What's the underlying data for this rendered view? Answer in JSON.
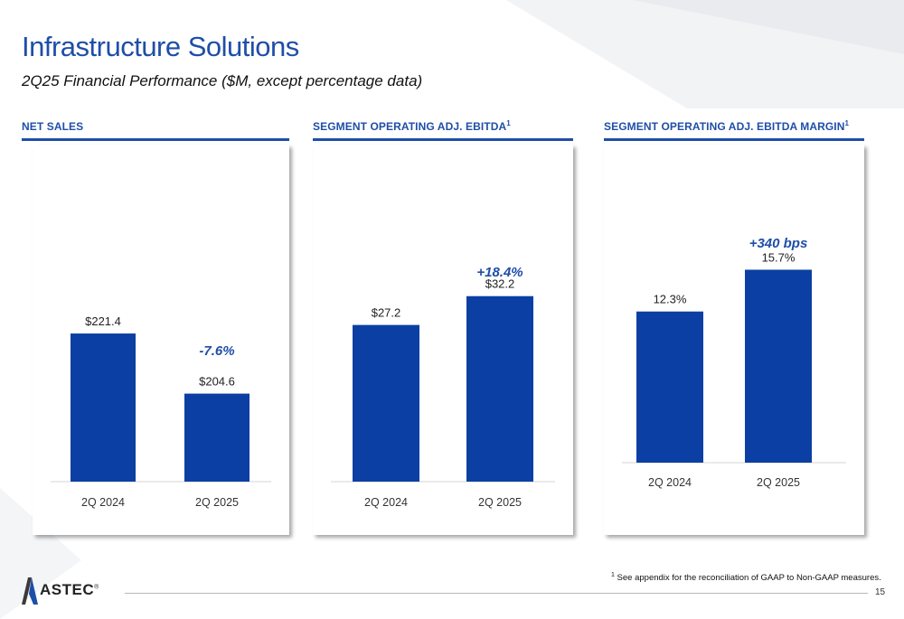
{
  "page": {
    "title": "Infrastructure Solutions",
    "subtitle": "2Q25 Financial Performance ($M, except percentage data)",
    "footnote_marker": "1",
    "footnote": "See appendix for the reconciliation of GAAP to Non-GAAP measures.",
    "page_number": "15",
    "logo_text": "ASTEC",
    "logo_mark": "®",
    "colors": {
      "accent": "#1f4ea8",
      "bar": "#0c3fa3"
    }
  },
  "panels": [
    {
      "header": "NET SALES",
      "header_sup": ""
    },
    {
      "header": "SEGMENT OPERATING ADJ. EBITDA",
      "header_sup": "1"
    },
    {
      "header": "SEGMENT OPERATING ADJ. EBITDA MARGIN",
      "header_sup": "1"
    }
  ],
  "chart_data": [
    {
      "type": "bar",
      "title": "NET SALES",
      "categories": [
        "2Q 2024",
        "2Q 2025"
      ],
      "values": [
        221.4,
        204.6
      ],
      "value_labels": [
        "$221.4",
        "$204.6"
      ],
      "change_label": "-7.6%",
      "ylim": [
        180,
        230
      ]
    },
    {
      "type": "bar",
      "title": "SEGMENT OPERATING ADJ. EBITDA",
      "categories": [
        "2Q 2024",
        "2Q 2025"
      ],
      "values": [
        27.2,
        32.2
      ],
      "value_labels": [
        "$27.2",
        "$32.2"
      ],
      "change_label": "+18.4%",
      "ylim": [
        0,
        40
      ]
    },
    {
      "type": "bar",
      "title": "SEGMENT OPERATING ADJ. EBITDA MARGIN",
      "categories": [
        "2Q 2024",
        "2Q 2025"
      ],
      "values": [
        12.3,
        15.7
      ],
      "value_labels": [
        "12.3%",
        "15.7%"
      ],
      "change_label": "+340 bps",
      "ylim": [
        0,
        20
      ]
    }
  ]
}
